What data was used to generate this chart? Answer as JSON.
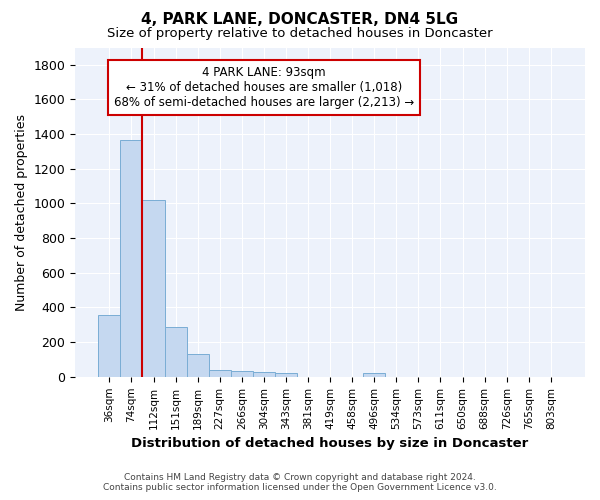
{
  "title": "4, PARK LANE, DONCASTER, DN4 5LG",
  "subtitle": "Size of property relative to detached houses in Doncaster",
  "xlabel": "Distribution of detached houses by size in Doncaster",
  "ylabel": "Number of detached properties",
  "bar_color": "#c5d8f0",
  "bar_edge_color": "#7aadd4",
  "background_color": "#edf2fb",
  "grid_color": "#ffffff",
  "categories": [
    "36sqm",
    "74sqm",
    "112sqm",
    "151sqm",
    "189sqm",
    "227sqm",
    "266sqm",
    "304sqm",
    "343sqm",
    "381sqm",
    "419sqm",
    "458sqm",
    "496sqm",
    "534sqm",
    "573sqm",
    "611sqm",
    "650sqm",
    "688sqm",
    "726sqm",
    "765sqm",
    "803sqm"
  ],
  "values": [
    355,
    1365,
    1020,
    290,
    130,
    42,
    35,
    26,
    20,
    0,
    0,
    0,
    20,
    0,
    0,
    0,
    0,
    0,
    0,
    0,
    0
  ],
  "ylim": [
    0,
    1900
  ],
  "yticks": [
    0,
    200,
    400,
    600,
    800,
    1000,
    1200,
    1400,
    1600,
    1800
  ],
  "vline_x_index": 1.5,
  "annotation_title": "4 PARK LANE: 93sqm",
  "annotation_line1": "← 31% of detached houses are smaller (1,018)",
  "annotation_line2": "68% of semi-detached houses are larger (2,213) →",
  "annotation_box_color": "#ffffff",
  "annotation_box_edge": "#cc0000",
  "vline_color": "#cc0000",
  "footer1": "Contains HM Land Registry data © Crown copyright and database right 2024.",
  "footer2": "Contains public sector information licensed under the Open Government Licence v3.0."
}
